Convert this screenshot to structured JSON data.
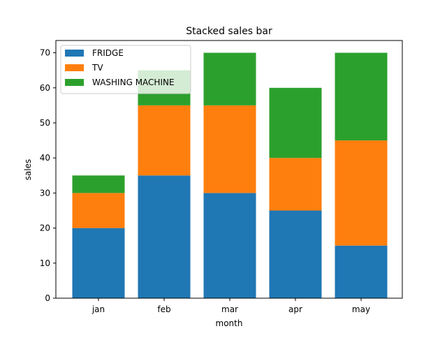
{
  "chart_data": {
    "type": "bar",
    "stacked": true,
    "title": "Stacked sales bar",
    "xlabel": "month",
    "ylabel": "sales",
    "categories": [
      "jan",
      "feb",
      "mar",
      "apr",
      "may"
    ],
    "series": [
      {
        "name": "FRIDGE",
        "color": "#1f77b4",
        "values": [
          20,
          35,
          30,
          25,
          15
        ]
      },
      {
        "name": "TV",
        "color": "#ff7f0e",
        "values": [
          10,
          20,
          25,
          15,
          30
        ]
      },
      {
        "name": "WASHING MACHINE",
        "color": "#2ca02c",
        "values": [
          5,
          10,
          15,
          20,
          25
        ]
      }
    ],
    "ylim": [
      0,
      73.5
    ],
    "yticks": [
      0,
      10,
      20,
      30,
      40,
      50,
      60,
      70
    ],
    "grid": false,
    "legend_position": "upper-left"
  }
}
